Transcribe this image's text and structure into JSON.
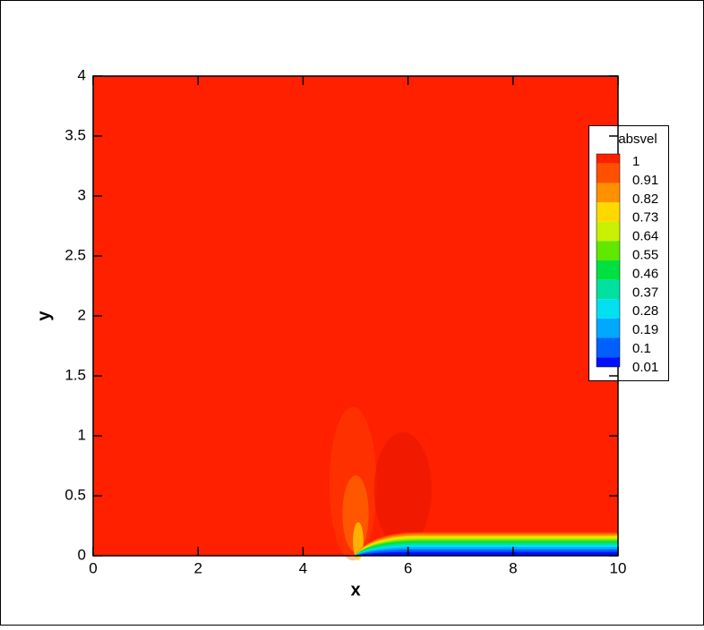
{
  "chart_data": {
    "type": "contour",
    "xlabel": "x",
    "ylabel": "y",
    "xlim": [
      0,
      10
    ],
    "ylim": [
      0,
      4
    ],
    "xticks": [
      0,
      2,
      4,
      6,
      8,
      10
    ],
    "yticks": [
      0,
      0.5,
      1,
      1.5,
      2,
      2.5,
      3,
      3.5,
      4
    ],
    "colorbar": {
      "title": "absvel",
      "levels": [
        1,
        0.91,
        0.82,
        0.73,
        0.64,
        0.55,
        0.46,
        0.37,
        0.28,
        0.19,
        0.1,
        0.01
      ],
      "colors": [
        "#ff2000",
        "#ff5000",
        "#ff9000",
        "#ffd800",
        "#c8f000",
        "#60e800",
        "#00e040",
        "#00e0a0",
        "#00e0f0",
        "#00a8ff",
        "#0060ff",
        "#0010ff"
      ]
    }
  }
}
